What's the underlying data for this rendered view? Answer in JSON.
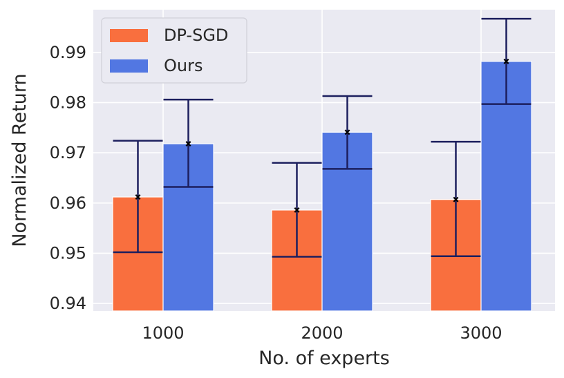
{
  "chart_data": {
    "type": "bar",
    "title": "",
    "xlabel": "No. of experts",
    "ylabel": "Normalized Return",
    "categories": [
      "1000",
      "2000",
      "3000"
    ],
    "ylim": [
      0.9385,
      0.9985
    ],
    "yticks": [
      0.94,
      0.95,
      0.96,
      0.97,
      0.98,
      0.99
    ],
    "ytick_labels": [
      "0.94",
      "0.95",
      "0.96",
      "0.97",
      "0.98",
      "0.99"
    ],
    "grid": true,
    "legend_position": "top-left",
    "series": [
      {
        "name": "DP-SGD",
        "color": "#f96f3e",
        "values": [
          0.9612,
          0.9586,
          0.9607
        ],
        "error_low": [
          0.9502,
          0.9493,
          0.9494
        ],
        "error_high": [
          0.9724,
          0.968,
          0.9722
        ]
      },
      {
        "name": "Ours",
        "color": "#5277e2",
        "values": [
          0.9718,
          0.9741,
          0.9882
        ],
        "error_low": [
          0.9632,
          0.9668,
          0.9797
        ],
        "error_high": [
          0.9806,
          0.9813,
          0.9967
        ]
      }
    ],
    "errorbar_color": "#1c1f5e",
    "background_color": "#eaeaf2"
  }
}
